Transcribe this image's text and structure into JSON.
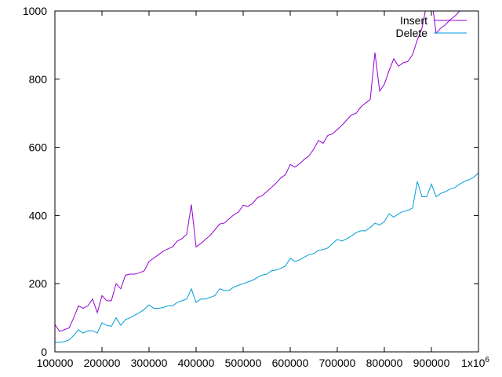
{
  "chart_data": {
    "type": "line",
    "title": "",
    "xlabel": "",
    "ylabel": "",
    "xlim": [
      100000,
      1000000
    ],
    "ylim": [
      0,
      1000
    ],
    "x_ticks": [
      100000,
      200000,
      300000,
      400000,
      500000,
      600000,
      700000,
      800000,
      900000,
      1000000
    ],
    "x_tick_labels": [
      "100000",
      "200000",
      "300000",
      "400000",
      "500000",
      "600000",
      "700000",
      "800000",
      "900000",
      "1x10"
    ],
    "x_last_tick_exponent": "6",
    "y_ticks": [
      0,
      200,
      400,
      600,
      800,
      1000
    ],
    "y_tick_labels": [
      "0",
      "200",
      "400",
      "600",
      "800",
      "1000"
    ],
    "grid": false,
    "legend_position": "top-right",
    "series": [
      {
        "name": "Insert",
        "color": "#9400d3",
        "points": [
          [
            100000,
            80
          ],
          [
            110000,
            60
          ],
          [
            120000,
            65
          ],
          [
            130000,
            70
          ],
          [
            140000,
            100
          ],
          [
            150000,
            135
          ],
          [
            160000,
            128
          ],
          [
            170000,
            135
          ],
          [
            180000,
            155
          ],
          [
            190000,
            115
          ],
          [
            200000,
            165
          ],
          [
            210000,
            150
          ],
          [
            220000,
            150
          ],
          [
            230000,
            200
          ],
          [
            240000,
            185
          ],
          [
            250000,
            225
          ],
          [
            260000,
            228
          ],
          [
            270000,
            228
          ],
          [
            280000,
            232
          ],
          [
            290000,
            238
          ],
          [
            300000,
            265
          ],
          [
            310000,
            275
          ],
          [
            320000,
            285
          ],
          [
            330000,
            295
          ],
          [
            340000,
            302
          ],
          [
            350000,
            308
          ],
          [
            360000,
            325
          ],
          [
            370000,
            332
          ],
          [
            380000,
            345
          ],
          [
            390000,
            432
          ],
          [
            400000,
            308
          ],
          [
            410000,
            318
          ],
          [
            420000,
            330
          ],
          [
            430000,
            342
          ],
          [
            440000,
            358
          ],
          [
            450000,
            375
          ],
          [
            460000,
            378
          ],
          [
            470000,
            390
          ],
          [
            480000,
            402
          ],
          [
            490000,
            410
          ],
          [
            500000,
            430
          ],
          [
            510000,
            427
          ],
          [
            520000,
            435
          ],
          [
            530000,
            452
          ],
          [
            540000,
            458
          ],
          [
            550000,
            470
          ],
          [
            560000,
            482
          ],
          [
            570000,
            495
          ],
          [
            580000,
            510
          ],
          [
            590000,
            520
          ],
          [
            600000,
            550
          ],
          [
            610000,
            542
          ],
          [
            620000,
            552
          ],
          [
            630000,
            565
          ],
          [
            640000,
            575
          ],
          [
            650000,
            595
          ],
          [
            660000,
            620
          ],
          [
            670000,
            612
          ],
          [
            680000,
            635
          ],
          [
            690000,
            640
          ],
          [
            700000,
            652
          ],
          [
            710000,
            665
          ],
          [
            720000,
            680
          ],
          [
            730000,
            695
          ],
          [
            740000,
            700
          ],
          [
            750000,
            718
          ],
          [
            760000,
            730
          ],
          [
            770000,
            740
          ],
          [
            780000,
            878
          ],
          [
            790000,
            765
          ],
          [
            800000,
            785
          ],
          [
            810000,
            825
          ],
          [
            820000,
            860
          ],
          [
            830000,
            838
          ],
          [
            840000,
            848
          ],
          [
            850000,
            852
          ],
          [
            860000,
            872
          ],
          [
            870000,
            915
          ],
          [
            880000,
            950
          ],
          [
            890000,
            1020
          ],
          [
            895000,
            1000
          ],
          [
            900000,
            1040
          ],
          [
            910000,
            935
          ],
          [
            920000,
            950
          ],
          [
            930000,
            960
          ],
          [
            940000,
            975
          ],
          [
            950000,
            985
          ],
          [
            960000,
            1000
          ],
          [
            970000,
            1020
          ],
          [
            980000,
            1040
          ]
        ]
      },
      {
        "name": "Delete",
        "color": "#009ed7",
        "points": [
          [
            100000,
            28
          ],
          [
            110000,
            28
          ],
          [
            120000,
            30
          ],
          [
            130000,
            35
          ],
          [
            140000,
            48
          ],
          [
            150000,
            65
          ],
          [
            160000,
            55
          ],
          [
            170000,
            62
          ],
          [
            180000,
            62
          ],
          [
            190000,
            55
          ],
          [
            200000,
            85
          ],
          [
            210000,
            78
          ],
          [
            220000,
            75
          ],
          [
            230000,
            100
          ],
          [
            240000,
            78
          ],
          [
            250000,
            95
          ],
          [
            260000,
            100
          ],
          [
            270000,
            108
          ],
          [
            280000,
            115
          ],
          [
            290000,
            125
          ],
          [
            300000,
            138
          ],
          [
            310000,
            128
          ],
          [
            320000,
            128
          ],
          [
            330000,
            130
          ],
          [
            340000,
            135
          ],
          [
            350000,
            135
          ],
          [
            360000,
            145
          ],
          [
            370000,
            150
          ],
          [
            380000,
            155
          ],
          [
            390000,
            185
          ],
          [
            400000,
            145
          ],
          [
            410000,
            155
          ],
          [
            420000,
            155
          ],
          [
            430000,
            160
          ],
          [
            440000,
            165
          ],
          [
            450000,
            185
          ],
          [
            460000,
            180
          ],
          [
            470000,
            180
          ],
          [
            480000,
            190
          ],
          [
            490000,
            195
          ],
          [
            500000,
            200
          ],
          [
            510000,
            205
          ],
          [
            520000,
            210
          ],
          [
            530000,
            218
          ],
          [
            540000,
            225
          ],
          [
            550000,
            228
          ],
          [
            560000,
            238
          ],
          [
            570000,
            240
          ],
          [
            580000,
            245
          ],
          [
            590000,
            252
          ],
          [
            600000,
            275
          ],
          [
            610000,
            265
          ],
          [
            620000,
            270
          ],
          [
            630000,
            278
          ],
          [
            640000,
            285
          ],
          [
            650000,
            288
          ],
          [
            660000,
            298
          ],
          [
            670000,
            300
          ],
          [
            680000,
            305
          ],
          [
            690000,
            318
          ],
          [
            700000,
            330
          ],
          [
            710000,
            325
          ],
          [
            720000,
            332
          ],
          [
            730000,
            340
          ],
          [
            740000,
            350
          ],
          [
            750000,
            355
          ],
          [
            760000,
            355
          ],
          [
            770000,
            365
          ],
          [
            780000,
            378
          ],
          [
            790000,
            372
          ],
          [
            800000,
            382
          ],
          [
            810000,
            405
          ],
          [
            820000,
            395
          ],
          [
            830000,
            405
          ],
          [
            840000,
            412
          ],
          [
            850000,
            415
          ],
          [
            860000,
            422
          ],
          [
            870000,
            500
          ],
          [
            880000,
            455
          ],
          [
            890000,
            455
          ],
          [
            900000,
            492
          ],
          [
            910000,
            455
          ],
          [
            920000,
            465
          ],
          [
            930000,
            470
          ],
          [
            940000,
            478
          ],
          [
            950000,
            482
          ],
          [
            960000,
            492
          ],
          [
            970000,
            500
          ],
          [
            980000,
            505
          ],
          [
            990000,
            512
          ],
          [
            1000000,
            525
          ]
        ]
      }
    ]
  }
}
